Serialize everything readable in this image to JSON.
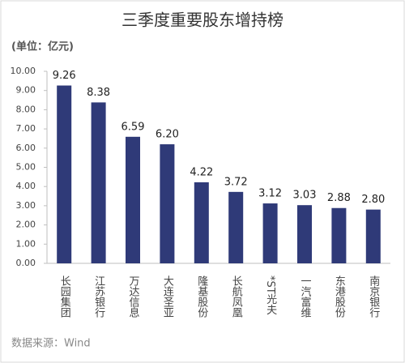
{
  "chart_data": {
    "type": "bar",
    "title": "三季度重要股东增持榜",
    "unit_label": "(单位：亿元)",
    "source": "数据来源：Wind",
    "categories": [
      "长园集团",
      "江苏银行",
      "万达信息",
      "大连圣亚",
      "隆基股份",
      "长航凤凰",
      "*ST光夫",
      "一汽富维",
      "东港股份",
      "南京银行"
    ],
    "values": [
      9.26,
      8.38,
      6.59,
      6.2,
      4.22,
      3.72,
      3.12,
      3.03,
      2.88,
      2.8
    ],
    "value_labels": [
      "9.26",
      "8.38",
      "6.59",
      "6.20",
      "4.22",
      "3.72",
      "3.12",
      "3.03",
      "2.88",
      "2.80"
    ],
    "color": "#2f3a78",
    "ylim": [
      0,
      10
    ],
    "yticks": [
      {
        "value": 0,
        "label": "0.00"
      },
      {
        "value": 1,
        "label": "1.00"
      },
      {
        "value": 2,
        "label": "2.00"
      },
      {
        "value": 3,
        "label": "3.00"
      },
      {
        "value": 4,
        "label": "4.00"
      },
      {
        "value": 5,
        "label": "5.00"
      },
      {
        "value": 6,
        "label": "6.00"
      },
      {
        "value": 7,
        "label": "7.00"
      },
      {
        "value": 8,
        "label": "8.00"
      },
      {
        "value": 9,
        "label": "9.00"
      },
      {
        "value": 10,
        "label": "10.00"
      }
    ],
    "grid": false
  }
}
